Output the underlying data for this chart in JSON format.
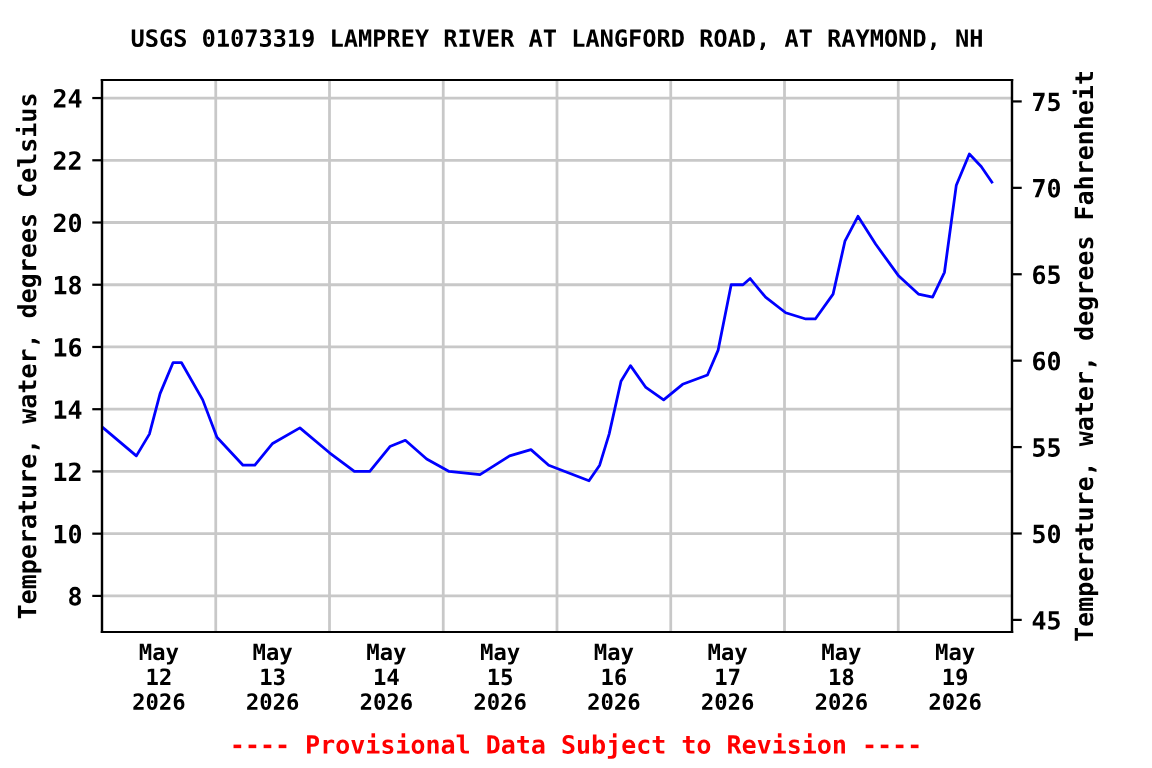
{
  "chart_data": {
    "type": "line",
    "title": "USGS 01073319 LAMPREY RIVER AT LANGFORD ROAD, AT RAYMOND, NH",
    "ylabel": "Temperature, water, degrees Celsius",
    "y2label": "Temperature, water, degrees Fahrenheit",
    "annotations": [
      "---- Provisional Data Subject to Revision ----"
    ],
    "x": [
      "2026-05-12T00:15",
      "2026-05-12T07:15",
      "2026-05-12T10:00",
      "2026-05-12T12:15",
      "2026-05-12T15:00",
      "2026-05-12T16:45",
      "2026-05-12T21:15",
      "2026-05-13T00:15",
      "2026-05-13T05:45",
      "2026-05-13T08:15",
      "2026-05-13T12:00",
      "2026-05-13T17:45",
      "2026-05-14T00:00",
      "2026-05-14T05:15",
      "2026-05-14T08:30",
      "2026-05-14T12:45",
      "2026-05-14T16:00",
      "2026-05-14T20:30",
      "2026-05-15T01:15",
      "2026-05-15T07:45",
      "2026-05-15T14:00",
      "2026-05-15T18:30",
      "2026-05-15T22:15",
      "2026-05-16T06:45",
      "2026-05-16T09:00",
      "2026-05-16T11:00",
      "2026-05-16T13:30",
      "2026-05-16T15:30",
      "2026-05-16T18:45",
      "2026-05-16T22:30",
      "2026-05-17T02:30",
      "2026-05-17T07:45",
      "2026-05-17T10:00",
      "2026-05-17T12:45",
      "2026-05-17T15:15",
      "2026-05-17T16:45",
      "2026-05-17T20:00",
      "2026-05-18T00:15",
      "2026-05-18T04:30",
      "2026-05-18T06:30",
      "2026-05-18T10:15",
      "2026-05-18T12:45",
      "2026-05-18T15:30",
      "2026-05-18T19:15",
      "2026-05-19T00:00",
      "2026-05-19T04:15",
      "2026-05-19T07:15",
      "2026-05-19T09:45",
      "2026-05-19T12:15",
      "2026-05-19T15:00",
      "2026-05-19T17:30",
      "2026-05-19T19:45"
    ],
    "series": [
      {
        "color": "#0000ff",
        "values": [
          13.4,
          12.5,
          13.2,
          14.5,
          15.5,
          15.5,
          14.3,
          13.1,
          12.2,
          12.2,
          12.9,
          13.4,
          12.6,
          12.0,
          12.0,
          12.8,
          13.0,
          12.4,
          12.0,
          11.9,
          12.5,
          12.7,
          12.2,
          11.7,
          12.2,
          13.2,
          14.9,
          15.4,
          14.7,
          14.3,
          14.8,
          15.1,
          15.9,
          18.0,
          18.0,
          18.2,
          17.6,
          17.1,
          16.9,
          16.9,
          17.7,
          19.4,
          20.2,
          19.3,
          18.3,
          17.7,
          17.6,
          18.4,
          21.2,
          22.2,
          21.8,
          21.3
        ]
      }
    ],
    "xlim": [
      "2026-05-12T00:00",
      "2026-05-20T00:00"
    ],
    "xticks": [
      {
        "value": "2026-05-13T00:00",
        "label": null
      },
      {
        "value": "2026-05-14T00:00",
        "label": null
      },
      {
        "value": "2026-05-15T00:00",
        "label": null
      },
      {
        "value": "2026-05-16T00:00",
        "label": null
      },
      {
        "value": "2026-05-17T00:00",
        "label": null
      },
      {
        "value": "2026-05-18T00:00",
        "label": null
      },
      {
        "value": "2026-05-19T00:00",
        "label": null
      },
      {
        "value": "2026-05-12T12:00",
        "label": "May\n12\n2026"
      },
      {
        "value": "2026-05-13T12:00",
        "label": "May\n13\n2026"
      },
      {
        "value": "2026-05-14T12:00",
        "label": "May\n14\n2026"
      },
      {
        "value": "2026-05-15T12:00",
        "label": "May\n15\n2026"
      },
      {
        "value": "2026-05-16T12:00",
        "label": "May\n16\n2026"
      },
      {
        "value": "2026-05-17T12:00",
        "label": "May\n17\n2026"
      },
      {
        "value": "2026-05-18T12:00",
        "label": "May\n18\n2026"
      },
      {
        "value": "2026-05-19T12:00",
        "label": "May\n19\n2026"
      }
    ],
    "ylim": [
      6.84,
      24.58
    ],
    "yticks": [
      8,
      10,
      12,
      14,
      16,
      18,
      20,
      22,
      24
    ],
    "y2lim": [
      44.3,
      76.24
    ],
    "y2ticks": [
      45,
      50,
      55,
      60,
      65,
      70,
      75
    ],
    "grid": true,
    "legend": false,
    "marker": "none",
    "line_style": "solid"
  }
}
